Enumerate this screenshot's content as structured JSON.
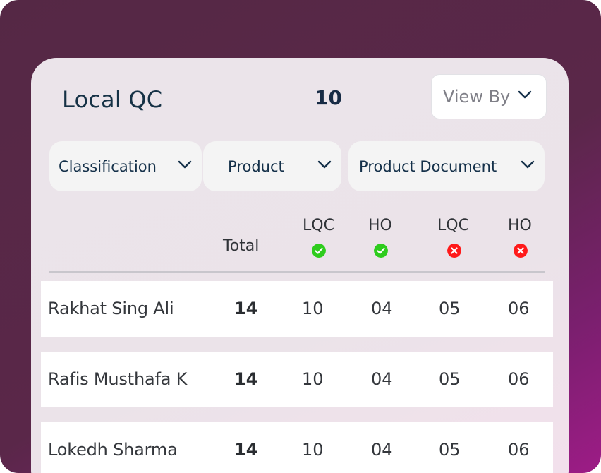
{
  "header": {
    "title": "Local QC",
    "count": "10",
    "view_by_label": "View By"
  },
  "filters": [
    {
      "label": "Classification"
    },
    {
      "label": "Product"
    },
    {
      "label": "Product Document"
    }
  ],
  "columns": {
    "total": "Total",
    "lqc_approved": {
      "label": "LQC",
      "status": "approved",
      "color": "#2ecc1d"
    },
    "ho_approved": {
      "label": "HO",
      "status": "approved",
      "color": "#2ecc1d"
    },
    "lqc_rejected": {
      "label": "LQC",
      "status": "rejected",
      "color": "#ff1a1a"
    },
    "ho_rejected": {
      "label": "HO",
      "status": "rejected",
      "color": "#ff1a1a"
    }
  },
  "rows": [
    {
      "name": "Rakhat Sing Ali",
      "total": "14",
      "lqc_approved": "10",
      "ho_approved": "04",
      "lqc_rejected": "05",
      "ho_rejected": "06"
    },
    {
      "name": "Rafis Musthafa K",
      "total": "14",
      "lqc_approved": "10",
      "ho_approved": "04",
      "lqc_rejected": "05",
      "ho_rejected": "06"
    },
    {
      "name": "Lokedh Sharma",
      "total": "14",
      "lqc_approved": "10",
      "ho_approved": "04",
      "lqc_rejected": "05",
      "ho_rejected": "06"
    }
  ],
  "colors": {
    "background_start": "#552845",
    "background_end": "#9d1c86",
    "card": "#ebe4ea",
    "approved": "#2ecc1d",
    "rejected": "#ff1a1a"
  },
  "icons": {
    "dropdown": "chevron-down-icon",
    "approved": "check-circle-icon",
    "rejected": "x-circle-icon"
  }
}
